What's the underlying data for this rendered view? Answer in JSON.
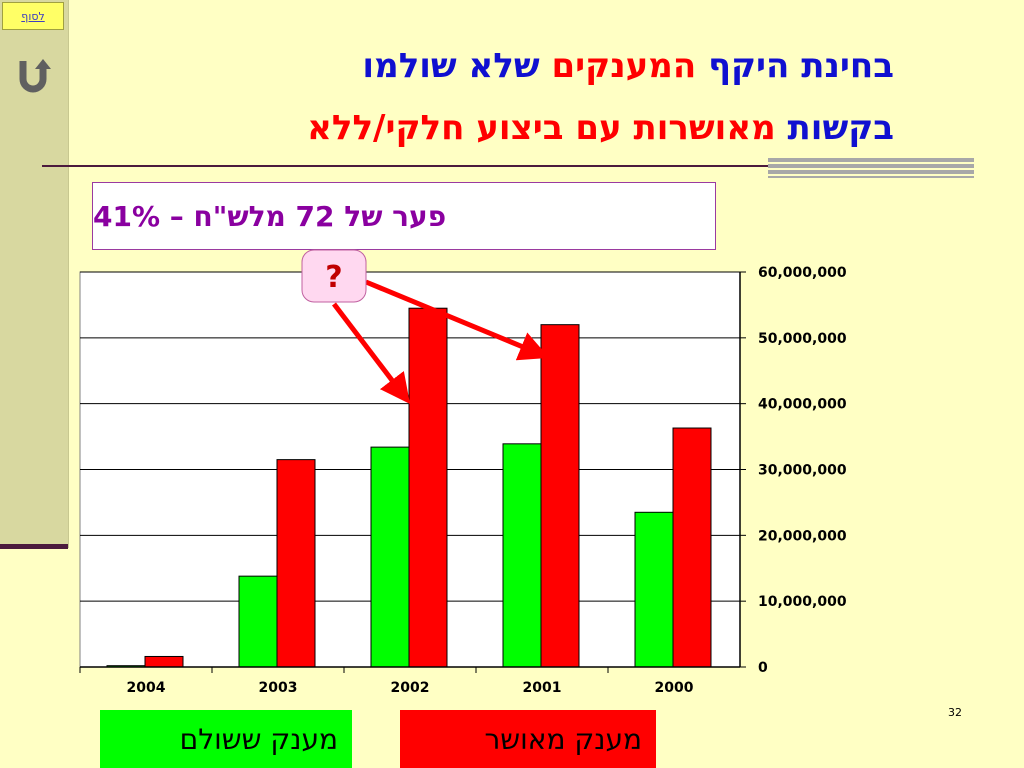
{
  "nav": {
    "end_link": "לסוף",
    "back_icon": "u-turn-back-icon"
  },
  "title": {
    "line1_part1": "בחינת היקף ",
    "line1_part2": "המענקים",
    "line1_part3": " שלא שולמו",
    "line2_part1": "בקשות",
    "line2_part2": " מאושרות עם ביצוע חלקי/ללא"
  },
  "note": "פער של 72 מלש\"ח – 41%",
  "question_mark": "?",
  "legend": {
    "paid": "מענק   ששולם",
    "approved": "מענק מאושר"
  },
  "page_number": "32",
  "colors": {
    "paid": "#00ff00",
    "approved": "#ff0000",
    "title_blue": "#1010d0",
    "title_red": "#ff0000"
  },
  "chart_data": {
    "type": "bar",
    "categories": [
      "2004",
      "2003",
      "2002",
      "2001",
      "2000"
    ],
    "series": [
      {
        "name": "מענק   ששולם",
        "color": "#00ff00",
        "values": [
          200000,
          13800000,
          33400000,
          33900000,
          23500000
        ]
      },
      {
        "name": "מענק מאושר",
        "color": "#ff0000",
        "values": [
          1600000,
          31500000,
          54500000,
          52000000,
          36300000
        ]
      }
    ],
    "yticks": [
      "0",
      "10,000,000",
      "20,000,000",
      "30,000,000",
      "40,000,000",
      "50,000,000",
      "60,000,000"
    ],
    "ylim": [
      0,
      60000000
    ],
    "y_axis_side": "right",
    "grid": true
  }
}
